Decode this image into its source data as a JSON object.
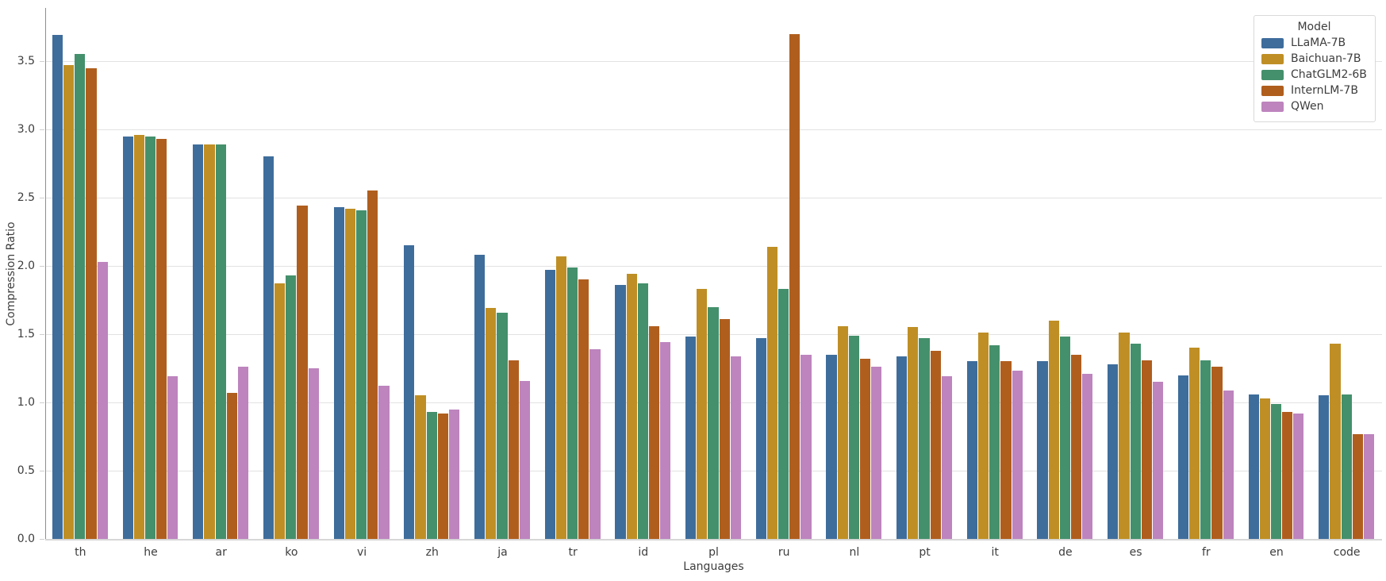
{
  "chart_data": {
    "type": "bar",
    "title": "",
    "xlabel": "Languages",
    "ylabel": "Compression Ratio",
    "ylim": [
      0,
      3.89
    ],
    "yticks": [
      "0.0",
      "0.5",
      "1.0",
      "1.5",
      "2.0",
      "2.5",
      "3.0",
      "3.5"
    ],
    "grid": true,
    "legend_title": "Model",
    "legend_position": "upper-right",
    "categories": [
      "th",
      "he",
      "ar",
      "ko",
      "vi",
      "zh",
      "ja",
      "tr",
      "id",
      "pl",
      "ru",
      "nl",
      "pt",
      "it",
      "de",
      "es",
      "fr",
      "en",
      "code"
    ],
    "series": [
      {
        "name": "LLaMA-7B",
        "color": "#3e6d9c",
        "values": [
          3.69,
          2.95,
          2.89,
          2.8,
          2.43,
          2.15,
          2.08,
          1.97,
          1.86,
          1.48,
          1.47,
          1.35,
          1.34,
          1.3,
          1.3,
          1.28,
          1.2,
          1.06,
          1.05
        ]
      },
      {
        "name": "Baichuan-7B",
        "color": "#bf8f25",
        "values": [
          3.47,
          2.96,
          2.89,
          1.87,
          2.42,
          1.05,
          1.69,
          2.07,
          1.94,
          1.83,
          2.14,
          1.56,
          1.55,
          1.51,
          1.6,
          1.51,
          1.4,
          1.03,
          1.43
        ]
      },
      {
        "name": "ChatGLM2-6B",
        "color": "#44906c",
        "values": [
          3.55,
          2.95,
          2.89,
          1.93,
          2.41,
          0.93,
          1.66,
          1.99,
          1.87,
          1.7,
          1.83,
          1.49,
          1.47,
          1.42,
          1.48,
          1.43,
          1.31,
          0.99,
          1.06
        ]
      },
      {
        "name": "InternLM-7B",
        "color": "#b05e1e",
        "values": [
          3.45,
          2.93,
          1.07,
          2.44,
          2.55,
          0.92,
          1.31,
          1.9,
          1.56,
          1.61,
          3.7,
          1.32,
          1.38,
          1.3,
          1.35,
          1.31,
          1.26,
          0.93,
          0.77
        ]
      },
      {
        "name": "QWen",
        "color": "#bd84be",
        "values": [
          2.03,
          1.19,
          1.26,
          1.25,
          1.12,
          0.95,
          1.16,
          1.39,
          1.44,
          1.34,
          1.35,
          1.26,
          1.19,
          1.23,
          1.21,
          1.15,
          1.09,
          0.92,
          0.77
        ]
      }
    ]
  }
}
